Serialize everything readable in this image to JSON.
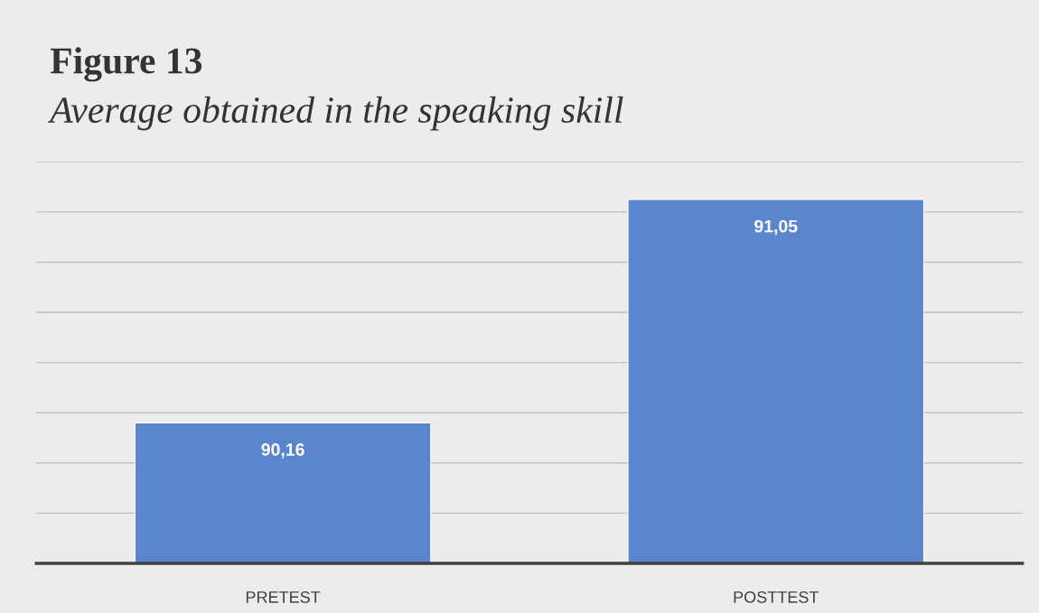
{
  "chart_data": {
    "type": "bar",
    "title": "Figure 13",
    "subtitle": "Average obtained in the speaking skill",
    "categories": [
      "PRETEST",
      "POSTTEST"
    ],
    "values": [
      90.16,
      91.05
    ],
    "value_labels": [
      "90,16",
      "91,05"
    ],
    "color": "#5b85cc",
    "ylim": [
      89.6,
      91.2
    ],
    "yticks": [
      {
        "value": 89.6,
        "label": null
      },
      {
        "value": 89.8,
        "label": null
      },
      {
        "value": 90.0,
        "label": null
      },
      {
        "value": 90.2,
        "label": null
      },
      {
        "value": 90.4,
        "label": null
      },
      {
        "value": 90.6,
        "label": null
      },
      {
        "value": 90.8,
        "label": null
      },
      {
        "value": 91.0,
        "label": null
      },
      {
        "value": 91.2,
        "label": null
      }
    ],
    "tick_labels": "x",
    "grid": "y",
    "legend": false
  }
}
